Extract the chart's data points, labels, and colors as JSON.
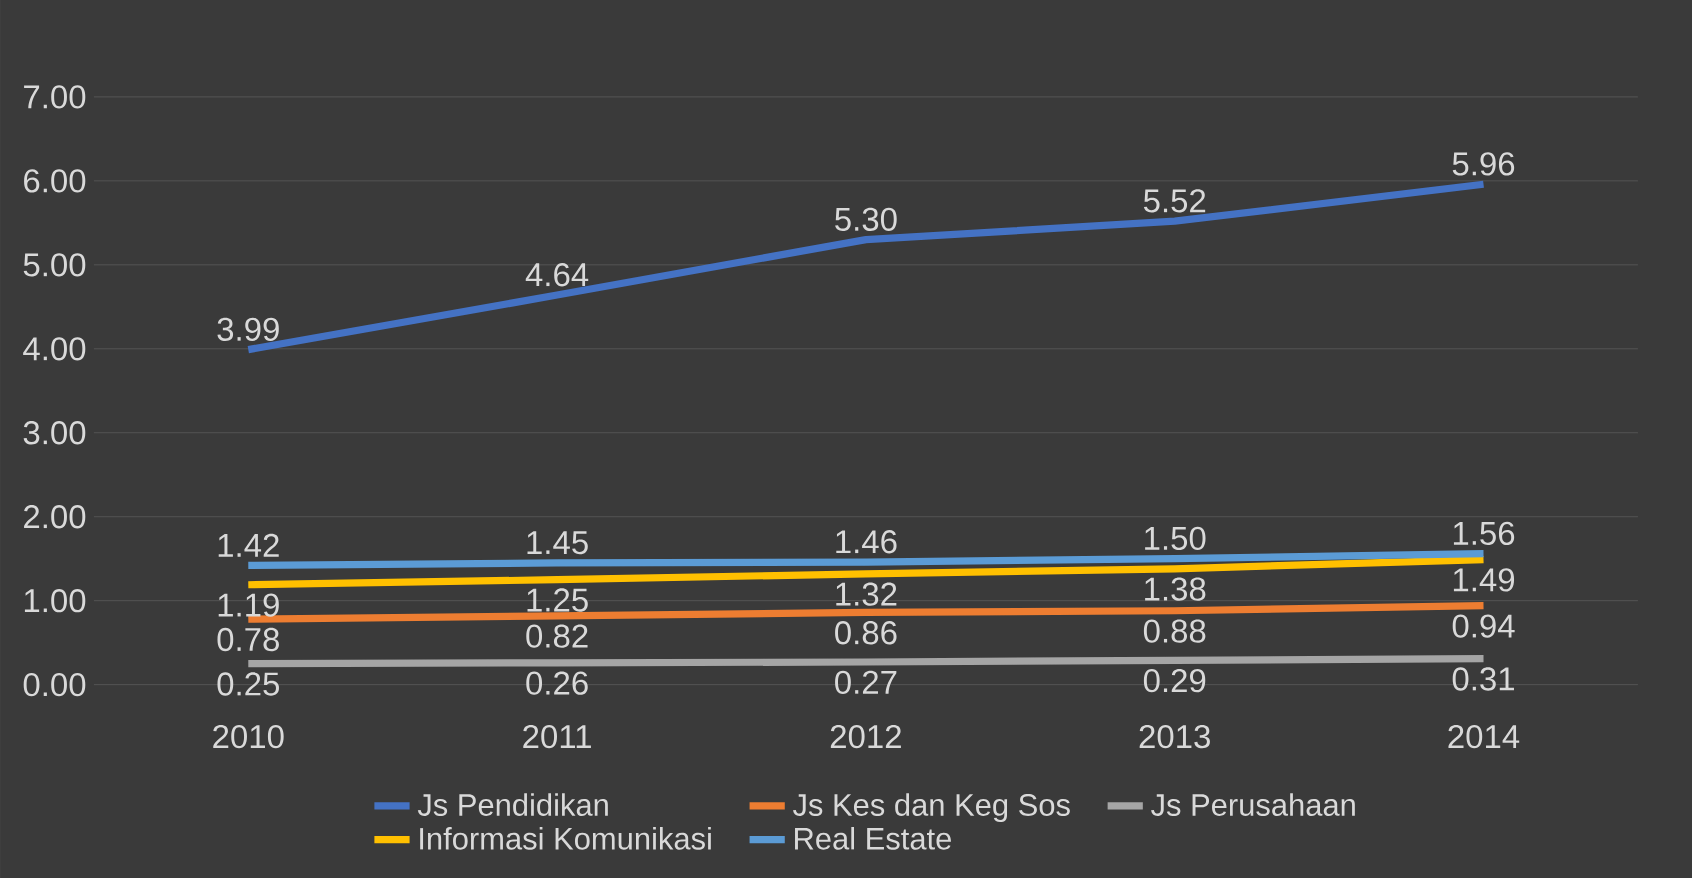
{
  "chart_data": {
    "type": "line",
    "categories": [
      "2010",
      "2011",
      "2012",
      "2013",
      "2014"
    ],
    "ylim": [
      0,
      7
    ],
    "yticks": [
      {
        "value": 0,
        "label": "0.00"
      },
      {
        "value": 1,
        "label": "1.00"
      },
      {
        "value": 2,
        "label": "2.00"
      },
      {
        "value": 3,
        "label": "3.00"
      },
      {
        "value": 4,
        "label": "4.00"
      },
      {
        "value": 5,
        "label": "5.00"
      },
      {
        "value": 6,
        "label": "6.00"
      },
      {
        "value": 7,
        "label": "7.00"
      }
    ],
    "grid": "y",
    "legend": "bottom",
    "marker": "none",
    "line_style": "solid",
    "series": [
      {
        "name": "Js Pendidikan",
        "color": "#4472c4",
        "values": [
          3.99,
          4.64,
          5.3,
          5.52,
          5.96
        ],
        "value_labels": [
          "3.99",
          "4.64",
          "5.30",
          "5.52",
          "5.96"
        ]
      },
      {
        "name": "Js Kes dan Keg Sos",
        "color": "#ed7d31",
        "values": [
          0.78,
          0.82,
          0.86,
          0.88,
          0.94
        ],
        "value_labels": [
          "0.78",
          "0.82",
          "0.86",
          "0.88",
          "0.94"
        ]
      },
      {
        "name": "Js Perusahaan",
        "color": "#a5a5a5",
        "values": [
          0.25,
          0.26,
          0.27,
          0.29,
          0.31
        ],
        "value_labels": [
          "0.25",
          "0.26",
          "0.27",
          "0.29",
          "0.31"
        ]
      },
      {
        "name": "Informasi Komunikasi",
        "color": "#ffc000",
        "values": [
          1.19,
          1.25,
          1.32,
          1.38,
          1.49
        ],
        "value_labels": [
          "1.19",
          "1.25",
          "1.32",
          "1.38",
          "1.49"
        ]
      },
      {
        "name": "Real Estate",
        "color": "#5b9bd5",
        "values": [
          1.42,
          1.45,
          1.46,
          1.5,
          1.56
        ],
        "value_labels": [
          "1.42",
          "1.45",
          "1.46",
          "1.50",
          "1.56"
        ]
      }
    ]
  }
}
